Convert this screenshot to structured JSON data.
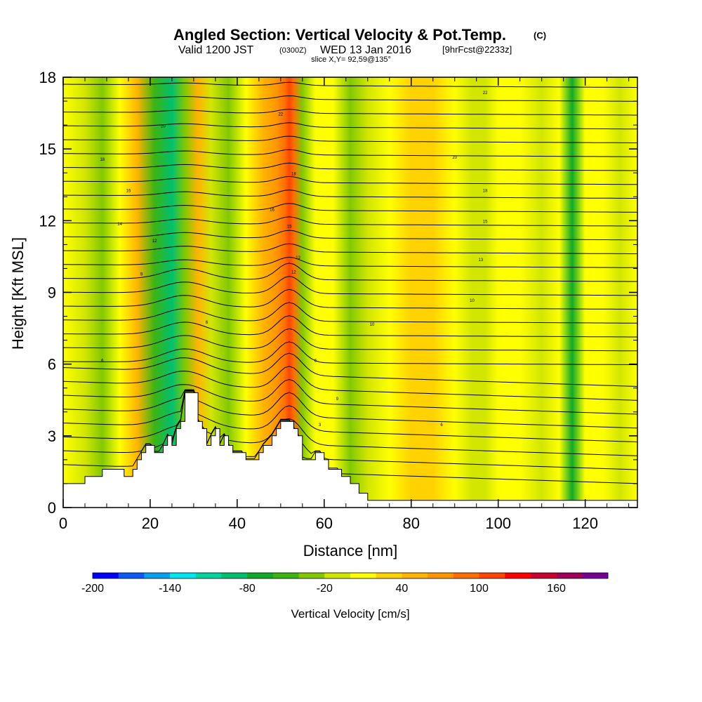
{
  "chart_data": {
    "type": "heatmap",
    "title": "Angled Section: Vertical Velocity & Pot.Temp.",
    "title_unit": "(C)",
    "subtitle_valid": "Valid 1200 JST",
    "subtitle_z": "(0300Z)",
    "subtitle_date": "WED 13 Jan 2016",
    "subtitle_fcst": "[9hrFcst@2233z]",
    "slice_label": "slice X,Y= 92,59@135°",
    "xlabel": "Distance [nm]",
    "ylabel": "Height [Kft MSL]",
    "xlim": [
      0,
      132
    ],
    "ylim": [
      0,
      18
    ],
    "xticks": [
      "0",
      "20",
      "40",
      "60",
      "80",
      "100",
      "120"
    ],
    "xtick_values": [
      0,
      20,
      40,
      60,
      80,
      100,
      120
    ],
    "yticks": [
      "0",
      "3",
      "6",
      "9",
      "12",
      "15",
      "18"
    ],
    "ytick_values": [
      0,
      3,
      6,
      9,
      12,
      15,
      18
    ],
    "colorbar": {
      "title": "Vertical Velocity [cm/s]",
      "labels": [
        "-200",
        "-140",
        "-80",
        "-20",
        "40",
        "100",
        "160"
      ],
      "label_values": [
        -200,
        -140,
        -80,
        -20,
        40,
        100,
        160
      ],
      "min": -200,
      "max": 200,
      "colors": [
        "#0000ff",
        "#0a5af5",
        "#0aa0f0",
        "#00e6f0",
        "#00d2a0",
        "#00c070",
        "#10aa28",
        "#3cb414",
        "#82c800",
        "#d2e600",
        "#ffff00",
        "#ffd200",
        "#ffb400",
        "#ff9600",
        "#ff6e00",
        "#ff4600",
        "#ff0000",
        "#c80032",
        "#a0005a",
        "#780096"
      ]
    },
    "velocity_field": {
      "x": [
        0,
        5,
        9,
        13,
        17,
        21,
        25,
        28,
        31,
        34,
        38,
        42,
        46,
        49,
        51,
        52,
        53,
        55,
        58,
        62,
        66,
        70,
        75,
        80,
        85,
        90,
        94,
        97,
        100,
        105,
        110,
        114,
        117,
        120,
        124,
        128,
        132
      ],
      "values": [
        5,
        -10,
        -25,
        10,
        45,
        -60,
        -90,
        -40,
        40,
        -20,
        -35,
        0,
        40,
        70,
        95,
        110,
        85,
        -40,
        0,
        10,
        -30,
        -5,
        15,
        20,
        20,
        5,
        -5,
        -20,
        10,
        0,
        -10,
        5,
        -70,
        10,
        0,
        -15,
        5
      ]
    },
    "isotherm_labels": [
      "6",
      "6",
      "3",
      "6",
      "6",
      "9",
      "9",
      "10",
      "10",
      "12",
      "12",
      "12",
      "13",
      "14",
      "15",
      "15",
      "16",
      "16",
      "18",
      "18",
      "18",
      "20",
      "20",
      "22",
      "22"
    ],
    "terrain": {
      "x": [
        0,
        4,
        5,
        7,
        9,
        10,
        13,
        14,
        16,
        17,
        18,
        19,
        20,
        21,
        22,
        23,
        24,
        25,
        26,
        27,
        28,
        29,
        30,
        31,
        32,
        33,
        34,
        35,
        36,
        37,
        38,
        39,
        40,
        41,
        42,
        44,
        45,
        46,
        48,
        49,
        50,
        51,
        52,
        53,
        54,
        55,
        56,
        57,
        58,
        59,
        60,
        61,
        62,
        63,
        64,
        65,
        66,
        67,
        68,
        70,
        72,
        80,
        100,
        132
      ],
      "height_kft": [
        1.0,
        1.0,
        1.3,
        1.3,
        1.6,
        1.6,
        1.6,
        1.3,
        1.6,
        2.0,
        2.3,
        2.6,
        2.6,
        2.3,
        2.3,
        2.6,
        3.0,
        2.6,
        3.3,
        3.6,
        4.8,
        4.8,
        4.8,
        3.6,
        3.3,
        2.6,
        3.0,
        3.3,
        2.6,
        3.0,
        2.6,
        2.3,
        2.3,
        2.3,
        2.0,
        2.0,
        2.3,
        2.6,
        3.0,
        3.3,
        3.6,
        3.6,
        3.6,
        3.3,
        3.0,
        2.0,
        2.0,
        2.0,
        2.3,
        2.3,
        2.0,
        1.6,
        1.6,
        1.6,
        1.3,
        1.3,
        1.0,
        1.0,
        0.6,
        0.3,
        0.3,
        0.3,
        0.3,
        0.3
      ]
    }
  }
}
